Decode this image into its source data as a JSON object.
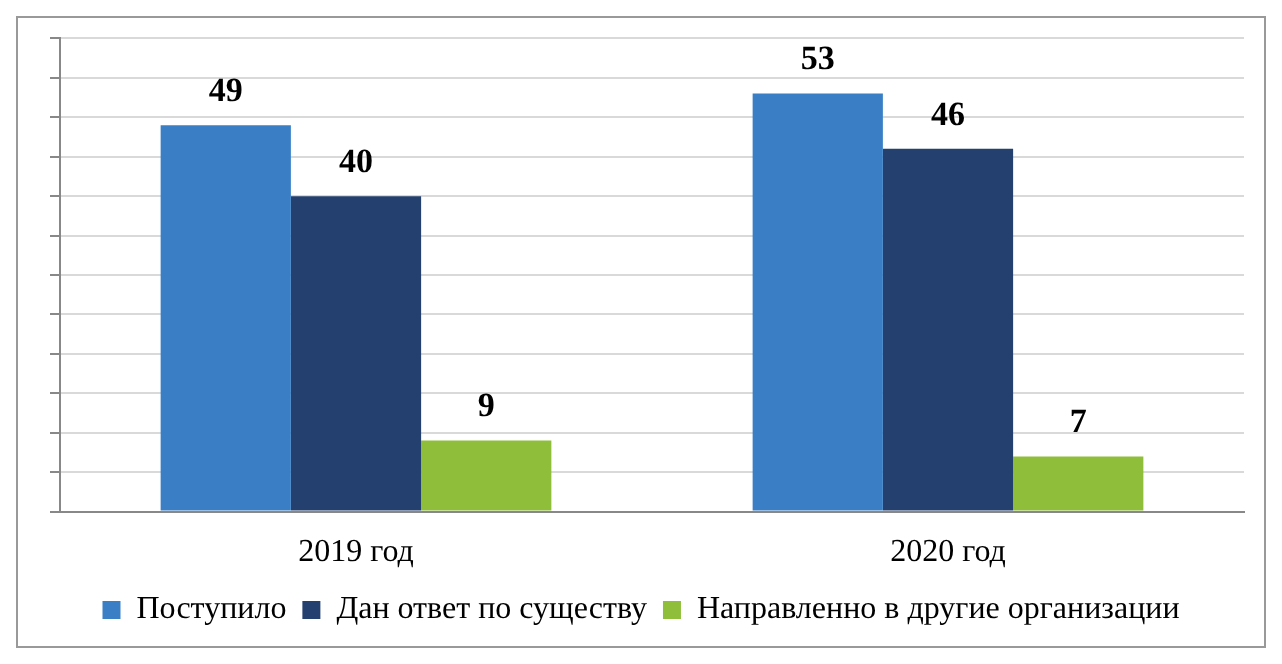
{
  "chart_data": {
    "type": "bar",
    "categories": [
      "2019 год",
      "2020 год"
    ],
    "series": [
      {
        "name": "Поступило",
        "color": "#3a7fc6",
        "values": [
          49,
          53
        ]
      },
      {
        "name": "Дан ответ по существу",
        "color": "#23406e",
        "values": [
          40,
          46
        ]
      },
      {
        "name": "Направленно в другие организации",
        "color": "#8fbf3a",
        "values": [
          9,
          7
        ]
      }
    ],
    "ylim": [
      0,
      60
    ],
    "yticks": [
      {
        "value": 0,
        "label": null
      },
      {
        "value": 5,
        "label": null
      },
      {
        "value": 10,
        "label": null
      },
      {
        "value": 15,
        "label": null
      },
      {
        "value": 20,
        "label": null
      },
      {
        "value": 25,
        "label": null
      },
      {
        "value": 30,
        "label": null
      },
      {
        "value": 35,
        "label": null
      },
      {
        "value": 40,
        "label": null
      },
      {
        "value": 45,
        "label": null
      },
      {
        "value": 50,
        "label": null
      },
      {
        "value": 55,
        "label": null
      },
      {
        "value": 60,
        "label": null
      }
    ],
    "grid": "y",
    "legend": "bottom",
    "data_labels": true
  }
}
